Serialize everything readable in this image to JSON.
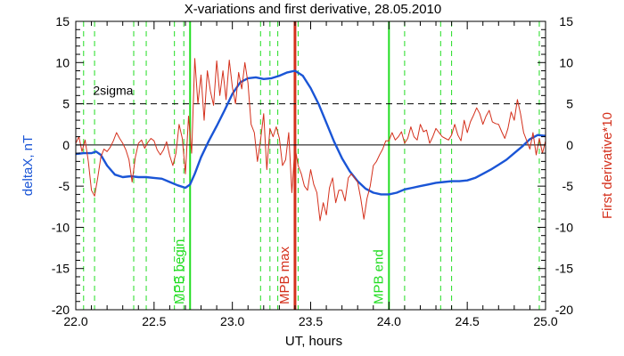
{
  "chart_data": {
    "type": "line",
    "title": "X-variations and first derivative, 28.05.2010",
    "xlabel": "UT, hours",
    "ylabel_left": "deltaX, nT",
    "ylabel_right": "First derivative*10",
    "xlim": [
      22.0,
      25.0
    ],
    "ylim": [
      -20,
      15
    ],
    "x_ticks": [
      "22.0",
      "22.5",
      "23.0",
      "23.5",
      "24.0",
      "24.5",
      "25.0"
    ],
    "y_ticks_left": [
      "15",
      "10",
      "5",
      "0",
      "-5",
      "-10",
      "-15",
      "-20"
    ],
    "y_ticks_right": [
      "15",
      "10",
      "5",
      "0",
      "-5",
      "-10",
      "-15",
      "-20"
    ],
    "colors": {
      "deltaX": "#1a55d6",
      "derivative": "#d4301c",
      "mpb_bounds": "#22dd22",
      "mpb_max": "#d4301c",
      "axis": "#000000"
    },
    "reference_lines": {
      "zero": 0,
      "sigma_level": 5,
      "sigma_label": "2sigma"
    },
    "dashed_markers_x": [
      22.05,
      22.12,
      22.37,
      22.45,
      22.63,
      22.69,
      23.18,
      23.24,
      23.29,
      23.42,
      24.1,
      24.33,
      24.4,
      24.96
    ],
    "solid_markers": [
      {
        "x": 22.73,
        "label": "MPB begin",
        "role": "mpb_bounds"
      },
      {
        "x": 23.4,
        "label": "MPB max",
        "role": "mpb_max"
      },
      {
        "x": 24.0,
        "label": "MPB end",
        "role": "mpb_bounds"
      }
    ],
    "series": [
      {
        "key": "deltaX",
        "x": [
          22.0,
          22.05,
          22.1,
          22.13,
          22.16,
          22.2,
          22.25,
          22.3,
          22.35,
          22.4,
          22.45,
          22.5,
          22.55,
          22.6,
          22.65,
          22.7,
          22.73,
          22.76,
          22.8,
          22.85,
          22.9,
          22.95,
          23.0,
          23.05,
          23.1,
          23.15,
          23.2,
          23.25,
          23.3,
          23.35,
          23.4,
          23.45,
          23.5,
          23.55,
          23.6,
          23.65,
          23.7,
          23.75,
          23.8,
          23.85,
          23.9,
          23.95,
          24.0,
          24.05,
          24.1,
          24.15,
          24.2,
          24.25,
          24.3,
          24.35,
          24.4,
          24.45,
          24.5,
          24.55,
          24.6,
          24.65,
          24.7,
          24.75,
          24.8,
          24.85,
          24.9,
          24.95,
          25.0
        ],
        "y": [
          -1.1,
          -1.0,
          -1.0,
          -0.8,
          -1.2,
          -2.5,
          -3.6,
          -3.9,
          -3.8,
          -3.9,
          -3.9,
          -4.0,
          -4.1,
          -4.5,
          -4.9,
          -5.2,
          -4.8,
          -3.5,
          -1.5,
          0.5,
          2.3,
          4.2,
          6.2,
          7.6,
          8.1,
          8.2,
          8.0,
          8.1,
          8.4,
          8.8,
          9.0,
          8.4,
          6.9,
          5.0,
          2.7,
          0.4,
          -1.6,
          -3.2,
          -4.4,
          -5.3,
          -5.8,
          -6.0,
          -6.0,
          -5.8,
          -5.4,
          -5.2,
          -5.0,
          -4.8,
          -4.6,
          -4.5,
          -4.4,
          -4.4,
          -4.3,
          -4.0,
          -3.5,
          -3.0,
          -2.4,
          -1.8,
          -1.0,
          -0.2,
          0.7,
          1.2,
          1.1
        ]
      },
      {
        "key": "derivative",
        "x": [
          22.0,
          22.02,
          22.04,
          22.06,
          22.08,
          22.1,
          22.12,
          22.14,
          22.16,
          22.18,
          22.2,
          22.22,
          22.24,
          22.26,
          22.28,
          22.3,
          22.32,
          22.34,
          22.36,
          22.38,
          22.4,
          22.42,
          22.44,
          22.46,
          22.48,
          22.5,
          22.52,
          22.54,
          22.56,
          22.58,
          22.6,
          22.62,
          22.64,
          22.66,
          22.68,
          22.7,
          22.72,
          22.74,
          22.76,
          22.78,
          22.8,
          22.82,
          22.84,
          22.86,
          22.88,
          22.9,
          22.92,
          22.94,
          22.96,
          22.98,
          23.0,
          23.02,
          23.04,
          23.06,
          23.08,
          23.1,
          23.12,
          23.14,
          23.16,
          23.18,
          23.2,
          23.22,
          23.24,
          23.26,
          23.28,
          23.3,
          23.32,
          23.34,
          23.36,
          23.38,
          23.4,
          23.42,
          23.44,
          23.46,
          23.48,
          23.5,
          23.52,
          23.54,
          23.56,
          23.58,
          23.6,
          23.62,
          23.64,
          23.66,
          23.68,
          23.7,
          23.72,
          23.74,
          23.76,
          23.78,
          23.8,
          23.82,
          23.84,
          23.86,
          23.88,
          23.9,
          23.92,
          23.94,
          23.96,
          23.98,
          24.0,
          24.02,
          24.04,
          24.06,
          24.08,
          24.1,
          24.12,
          24.14,
          24.16,
          24.18,
          24.2,
          24.22,
          24.24,
          24.26,
          24.28,
          24.3,
          24.32,
          24.34,
          24.36,
          24.38,
          24.4,
          24.42,
          24.44,
          24.46,
          24.48,
          24.5,
          24.52,
          24.54,
          24.56,
          24.58,
          24.6,
          24.62,
          24.64,
          24.66,
          24.68,
          24.7,
          24.72,
          24.74,
          24.76,
          24.78,
          24.8,
          24.82,
          24.84,
          24.86,
          24.88,
          24.9,
          24.92,
          24.94,
          24.96,
          24.98,
          25.0
        ],
        "y": [
          0.2,
          1.0,
          -0.8,
          0.6,
          -2.0,
          -5.5,
          -6.2,
          -4.0,
          -1.5,
          -0.5,
          -0.8,
          -0.3,
          0.5,
          1.5,
          0.8,
          0.2,
          -0.6,
          -1.8,
          -4.5,
          -1.5,
          0.2,
          0.6,
          -0.4,
          0.3,
          0.8,
          0.5,
          -0.6,
          -1.2,
          -0.6,
          0.4,
          -1.3,
          -2.5,
          -1.0,
          2.5,
          0.8,
          -3.5,
          3.5,
          -1.0,
          10.5,
          5.0,
          8.5,
          3.0,
          9.0,
          6.5,
          4.8,
          10.2,
          6.0,
          9.0,
          5.5,
          10.3,
          7.0,
          5.0,
          8.8,
          6.8,
          10.0,
          7.5,
          2.5,
          1.5,
          -2.0,
          0.6,
          3.8,
          -3.0,
          2.0,
          1.0,
          2.2,
          0.8,
          -2.5,
          -1.8,
          1.5,
          -5.8,
          -0.2,
          -2.5,
          -3.5,
          -5.0,
          -5.5,
          -3.0,
          -4.8,
          -5.8,
          -9.2,
          -7.0,
          -8.5,
          -5.2,
          -4.0,
          -7.0,
          -5.5,
          -5.5,
          -6.8,
          -4.0,
          -3.5,
          -4.0,
          -4.5,
          -6.5,
          -9.0,
          -6.5,
          -5.0,
          -2.5,
          -2.0,
          -1.2,
          -0.5,
          0.5,
          0.5,
          1.5,
          0.6,
          1.0,
          1.6,
          0.2,
          0.8,
          2.2,
          1.0,
          0.6,
          2.5,
          1.6,
          1.8,
          0.2,
          1.0,
          2.0,
          1.5,
          1.0,
          0.8,
          0.6,
          1.2,
          2.5,
          1.2,
          0.5,
          3.0,
          1.5,
          2.8,
          3.6,
          4.5,
          3.8,
          2.5,
          3.5,
          4.2,
          2.8,
          2.6,
          2.5,
          1.6,
          0.8,
          2.0,
          4.0,
          3.0,
          5.5,
          3.8,
          1.5,
          0.5,
          -0.5,
          1.5,
          -1.2,
          0.8,
          -1.0,
          0.5
        ]
      }
    ]
  }
}
